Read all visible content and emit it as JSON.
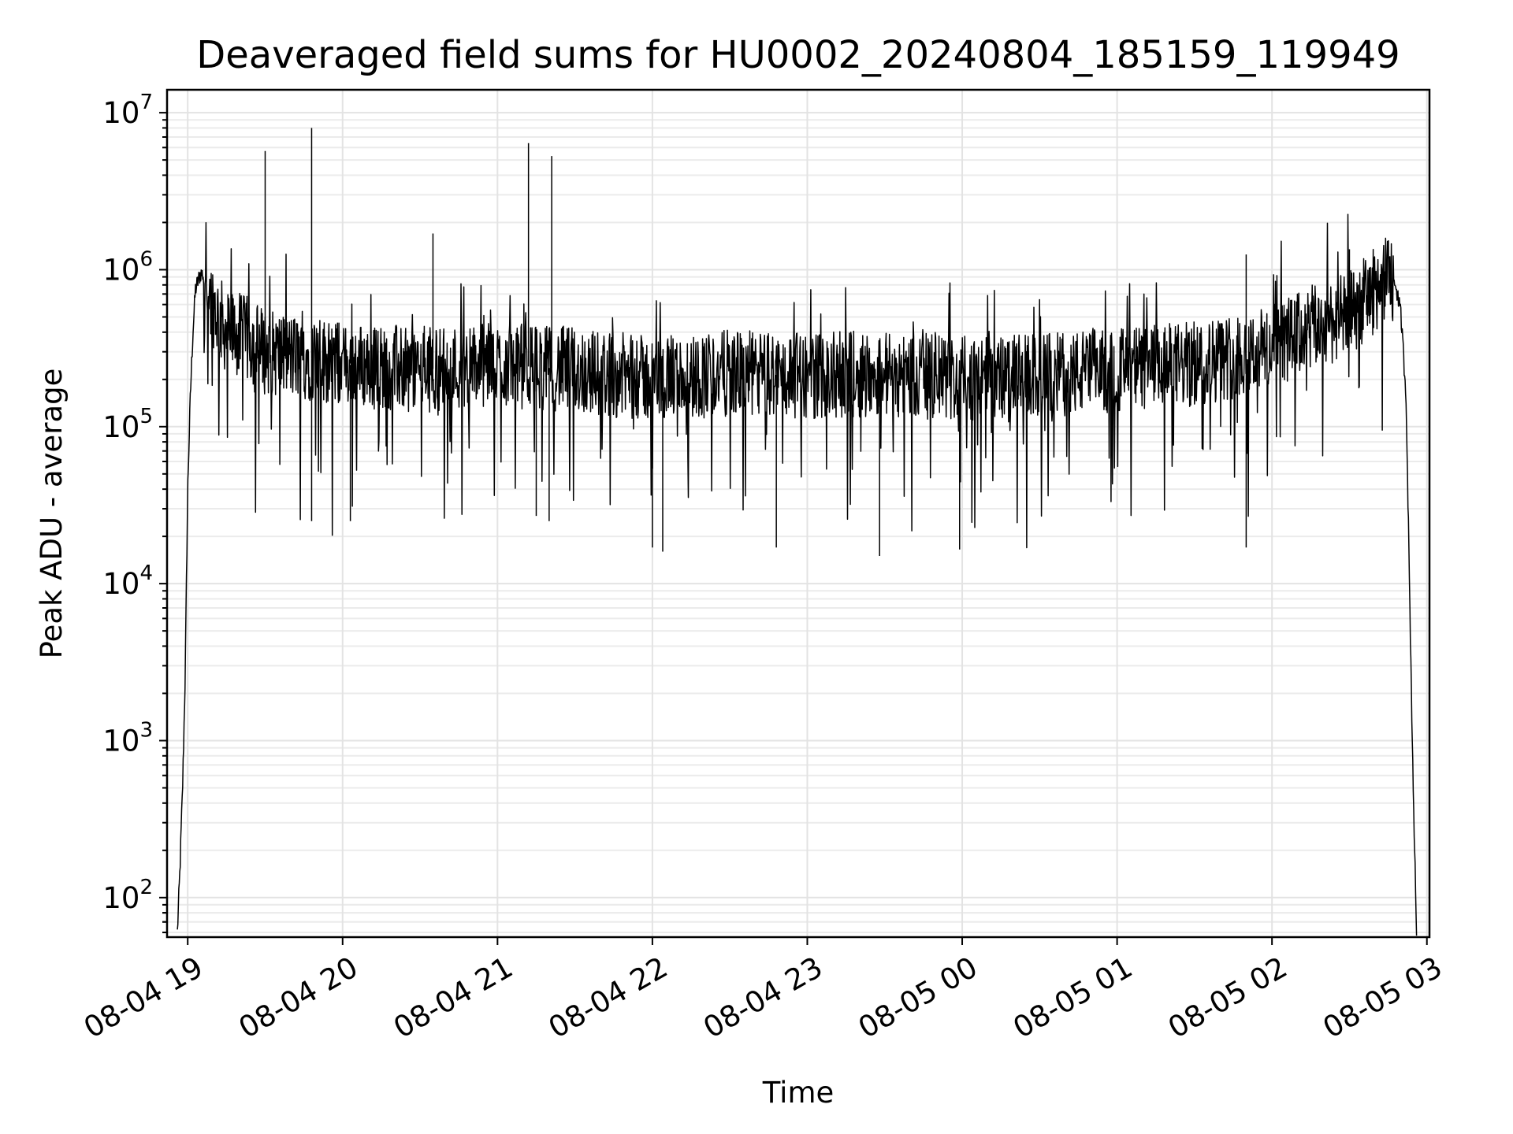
{
  "chart_data": {
    "type": "line",
    "title": "Deaveraged field sums for HU0002_20240804_185159_119949",
    "xlabel": "Time",
    "ylabel": "Peak ADU - average",
    "yscale": "log",
    "ylim": [
      56,
      14000000
    ],
    "xlim": [
      "2024-08-04 18:52",
      "2024-08-05 03:01"
    ],
    "grid": true,
    "grid_minor": true,
    "line_color": "#000000",
    "x_ticks": [
      {
        "value": "2024-08-04 19:00",
        "label": "08-04 19"
      },
      {
        "value": "2024-08-04 20:00",
        "label": "08-04 20"
      },
      {
        "value": "2024-08-04 21:00",
        "label": "08-04 21"
      },
      {
        "value": "2024-08-04 22:00",
        "label": "08-04 22"
      },
      {
        "value": "2024-08-04 23:00",
        "label": "08-04 23"
      },
      {
        "value": "2024-08-05 00:00",
        "label": "08-05 00"
      },
      {
        "value": "2024-08-05 01:00",
        "label": "08-05 01"
      },
      {
        "value": "2024-08-05 02:00",
        "label": "08-05 02"
      },
      {
        "value": "2024-08-05 03:00",
        "label": "08-05 03"
      }
    ],
    "y_ticks": [
      {
        "value": 100,
        "base": "10",
        "exp": "2"
      },
      {
        "value": 1000,
        "base": "10",
        "exp": "3"
      },
      {
        "value": 10000,
        "base": "10",
        "exp": "4"
      },
      {
        "value": 100000,
        "base": "10",
        "exp": "5"
      },
      {
        "value": 1000000,
        "base": "10",
        "exp": "6"
      },
      {
        "value": 10000000,
        "base": "10",
        "exp": "7"
      }
    ],
    "series": [
      {
        "x": [
          "2024-08-04 18:56",
          "2024-08-04 18:57",
          "2024-08-04 18:58",
          "2024-08-04 18:59",
          "2024-08-04 19:00",
          "2024-08-04 19:01",
          "2024-08-04 19:02",
          "2024-08-04 19:03",
          "2024-08-04 19:05",
          "2024-08-04 19:07",
          "2024-08-04 19:09",
          "2024-08-04 19:12",
          "2024-08-04 19:15",
          "2024-08-04 19:20",
          "2024-08-04 19:25",
          "2024-08-04 19:30",
          "2024-08-04 19:40",
          "2024-08-04 19:50",
          "2024-08-04 20:00",
          "2024-08-04 20:30",
          "2024-08-04 21:00",
          "2024-08-04 21:30",
          "2024-08-04 22:00",
          "2024-08-04 22:30",
          "2024-08-04 23:00",
          "2024-08-04 23:30",
          "2024-08-05 00:00",
          "2024-08-05 00:30",
          "2024-08-05 01:00",
          "2024-08-05 01:30",
          "2024-08-05 02:00",
          "2024-08-05 02:15",
          "2024-08-05 02:30",
          "2024-08-05 02:40",
          "2024-08-05 02:45",
          "2024-08-05 02:48",
          "2024-08-05 02:50",
          "2024-08-05 02:52",
          "2024-08-05 02:54",
          "2024-08-05 02:55",
          "2024-08-05 02:56"
        ],
        "y": [
          60,
          150,
          500,
          2500,
          40000,
          150000,
          400000,
          750000,
          950000,
          900000,
          650000,
          500000,
          400000,
          380000,
          350000,
          300000,
          280000,
          270000,
          250000,
          230000,
          250000,
          230000,
          200000,
          220000,
          210000,
          220000,
          200000,
          210000,
          230000,
          250000,
          320000,
          420000,
          520000,
          750000,
          900000,
          800000,
          500000,
          150000,
          2000,
          300,
          60
        ]
      }
    ],
    "spikes": [
      {
        "x": "2024-08-04 19:30",
        "y": 5700000
      },
      {
        "x": "2024-08-04 19:48",
        "y": 8000000
      },
      {
        "x": "2024-08-04 20:35",
        "y": 1700000
      },
      {
        "x": "2024-08-04 21:12",
        "y": 6400000
      },
      {
        "x": "2024-08-04 21:21",
        "y": 5300000
      },
      {
        "x": "2024-08-05 01:50",
        "y": 1250000
      },
      {
        "x": "2024-08-05 02:30",
        "y": 1350000
      }
    ],
    "dips": [
      {
        "x": "2024-08-04 19:48",
        "y": 25000
      },
      {
        "x": "2024-08-04 20:03",
        "y": 25000
      },
      {
        "x": "2024-08-04 21:15",
        "y": 27000
      },
      {
        "x": "2024-08-04 21:20",
        "y": 25000
      },
      {
        "x": "2024-08-04 22:00",
        "y": 17000
      },
      {
        "x": "2024-08-04 22:04",
        "y": 16000
      },
      {
        "x": "2024-08-04 22:48",
        "y": 17000
      },
      {
        "x": "2024-08-04 23:28",
        "y": 15000
      },
      {
        "x": "2024-08-04 23:59",
        "y": 16500
      },
      {
        "x": "2024-08-05 01:50",
        "y": 17000
      }
    ]
  }
}
